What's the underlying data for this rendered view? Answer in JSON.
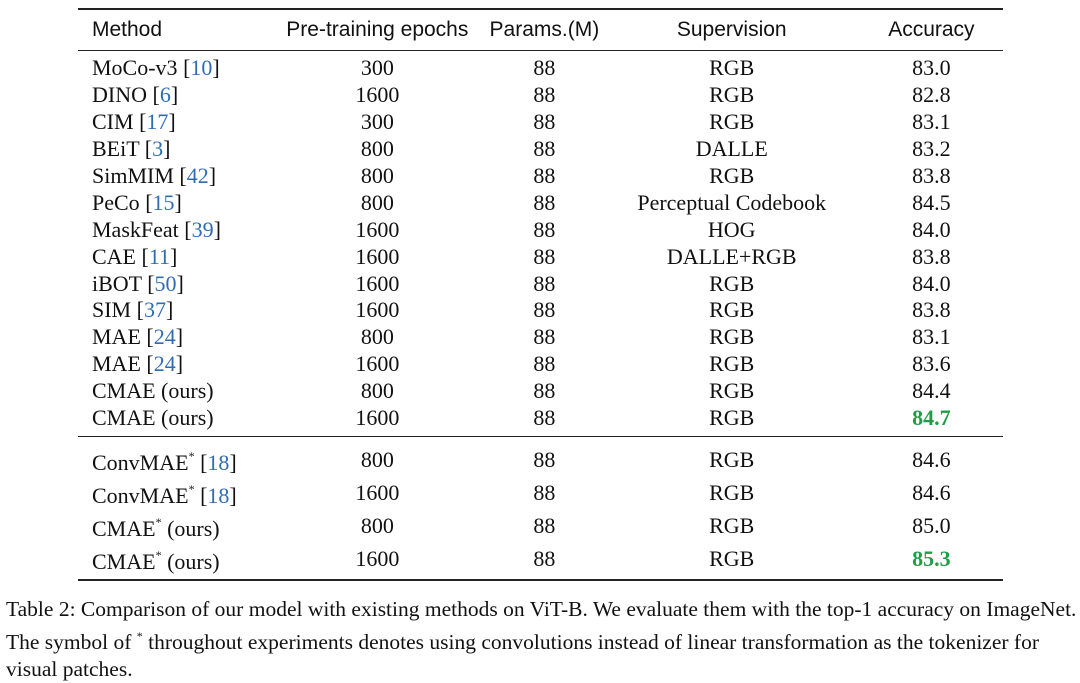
{
  "table": {
    "headers": [
      "Method",
      "Pre-training epochs",
      "Params.(M)",
      "Supervision",
      "Accuracy"
    ],
    "group1": [
      {
        "name": "MoCo-v3",
        "star": "",
        "ref": "10",
        "epochs": "300",
        "params": "88",
        "sup": "RGB",
        "acc": "83.0",
        "best": false
      },
      {
        "name": "DINO",
        "star": "",
        "ref": "6",
        "epochs": "1600",
        "params": "88",
        "sup": "RGB",
        "acc": "82.8",
        "best": false
      },
      {
        "name": "CIM",
        "star": "",
        "ref": "17",
        "epochs": "300",
        "params": "88",
        "sup": "RGB",
        "acc": "83.1",
        "best": false
      },
      {
        "name": "BEiT",
        "star": "",
        "ref": "3",
        "epochs": "800",
        "params": "88",
        "sup": "DALLE",
        "acc": "83.2",
        "best": false
      },
      {
        "name": "SimMIM",
        "star": "",
        "ref": "42",
        "epochs": "800",
        "params": "88",
        "sup": "RGB",
        "acc": "83.8",
        "best": false
      },
      {
        "name": "PeCo",
        "star": "",
        "ref": "15",
        "epochs": "800",
        "params": "88",
        "sup": "Perceptual Codebook",
        "acc": "84.5",
        "best": false
      },
      {
        "name": "MaskFeat",
        "star": "",
        "ref": "39",
        "epochs": "1600",
        "params": "88",
        "sup": "HOG",
        "acc": "84.0",
        "best": false
      },
      {
        "name": "CAE",
        "star": "",
        "ref": "11",
        "epochs": "1600",
        "params": "88",
        "sup": "DALLE+RGB",
        "acc": "83.8",
        "best": false
      },
      {
        "name": "iBOT",
        "star": "",
        "ref": "50",
        "epochs": "1600",
        "params": "88",
        "sup": "RGB",
        "acc": "84.0",
        "best": false
      },
      {
        "name": "SIM",
        "star": "",
        "ref": "37",
        "epochs": "1600",
        "params": "88",
        "sup": "RGB",
        "acc": "83.8",
        "best": false
      },
      {
        "name": "MAE",
        "star": "",
        "ref": "24",
        "epochs": "800",
        "params": "88",
        "sup": "RGB",
        "acc": "83.1",
        "best": false
      },
      {
        "name": "MAE",
        "star": "",
        "ref": "24",
        "epochs": "1600",
        "params": "88",
        "sup": "RGB",
        "acc": "83.6",
        "best": false
      },
      {
        "name": "CMAE (ours)",
        "star": "",
        "ref": "",
        "epochs": "800",
        "params": "88",
        "sup": "RGB",
        "acc": "84.4",
        "best": false
      },
      {
        "name": "CMAE (ours)",
        "star": "",
        "ref": "",
        "epochs": "1600",
        "params": "88",
        "sup": "RGB",
        "acc": "84.7",
        "best": true
      }
    ],
    "group2": [
      {
        "name": "ConvMAE",
        "star": "*",
        "ref": "18",
        "tail": "",
        "epochs": "800",
        "params": "88",
        "sup": "RGB",
        "acc": "84.6",
        "best": false
      },
      {
        "name": "ConvMAE",
        "star": "*",
        "ref": "18",
        "tail": "",
        "epochs": "1600",
        "params": "88",
        "sup": "RGB",
        "acc": "84.6",
        "best": false
      },
      {
        "name": "CMAE",
        "star": "*",
        "ref": "",
        "tail": "(ours)",
        "epochs": "800",
        "params": "88",
        "sup": "RGB",
        "acc": "85.0",
        "best": false
      },
      {
        "name": "CMAE",
        "star": "*",
        "ref": "",
        "tail": "(ours)",
        "epochs": "1600",
        "params": "88",
        "sup": "RGB",
        "acc": "85.3",
        "best": true
      }
    ]
  },
  "caption": {
    "part1": "Table 2: Comparison of our model with existing methods on ViT-B. We evaluate them with the top-1 accuracy on ImageNet. The symbol of",
    "star": "*",
    "part2": "throughout experiments denotes using convolutions instead of linear transformation as the tokenizer for visual patches."
  },
  "colors": {
    "ref": "#2f6db3",
    "best": "#1f9e47"
  }
}
